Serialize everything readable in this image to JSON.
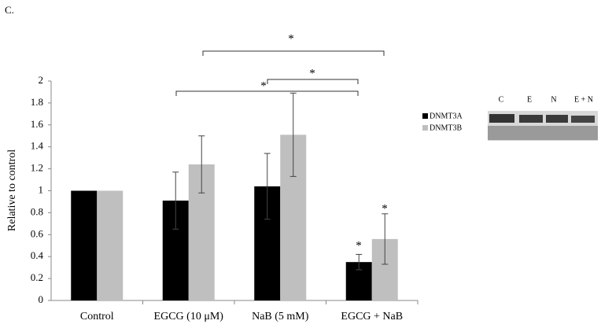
{
  "chart_data": {
    "type": "bar",
    "panel_label": "C.",
    "y_label": "Relative to control",
    "categories": [
      "Control",
      "EGCG (10 μM)",
      "NaB (5 mM)",
      "EGCG + NaB"
    ],
    "series": [
      {
        "name": "DNMT3A",
        "color": "#000000",
        "values": [
          1,
          0.91,
          1.04,
          0.35
        ],
        "errors": [
          null,
          0.26,
          0.3,
          0.07
        ]
      },
      {
        "name": "DNMT3B",
        "color": "#bfbfbf",
        "values": [
          1,
          1.24,
          1.51,
          0.56
        ],
        "errors": [
          null,
          0.26,
          0.38,
          0.23
        ]
      }
    ],
    "ylim": [
      0,
      2
    ],
    "yticks": [
      0,
      0.2,
      0.4,
      0.6,
      0.8,
      1,
      1.2,
      1.4,
      1.6,
      1.8,
      2
    ],
    "grid": false,
    "annotations": [
      "*",
      "*",
      "*",
      "*",
      "*"
    ],
    "blot_lanes": [
      "C",
      "E",
      "N",
      "E + N"
    ]
  }
}
